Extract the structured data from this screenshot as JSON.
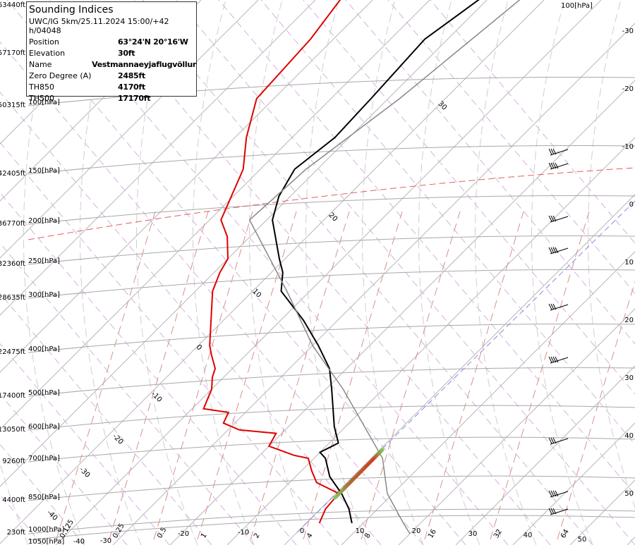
{
  "info_box": {
    "title": "Sounding Indices",
    "model_run": "UWC/IG 5km/25.11.2024 15:00/+42 h/04048",
    "rows": [
      {
        "label": "Position",
        "value": "63°24'N 20°16'W"
      },
      {
        "label": "Elevation",
        "value": "30ft"
      },
      {
        "label": "Name",
        "value": "Vestmannaeyjaflugvöllur"
      },
      {
        "label": "Zero Degree (A)",
        "value": "2485ft"
      },
      {
        "label": "TH850",
        "value": "4170ft"
      },
      {
        "label": "TH500",
        "value": "17170ft"
      }
    ]
  },
  "chart_data": {
    "type": "line",
    "diagram": "skew-T log-P",
    "pressure_levels": [
      {
        "p": 1050,
        "label": "1050[hPa]",
        "alt": ""
      },
      {
        "p": 1000,
        "label": "1000[hPa]",
        "alt": "230ft"
      },
      {
        "p": 850,
        "label": "850[hPa]",
        "alt": "4400ft"
      },
      {
        "p": 700,
        "label": "700[hPa]",
        "alt": "9260ft"
      },
      {
        "p": 600,
        "label": "600[hPa]",
        "alt": "13050ft"
      },
      {
        "p": 500,
        "label": "500[hPa]",
        "alt": "17400ft"
      },
      {
        "p": 400,
        "label": "400[hPa]",
        "alt": "22475ft"
      },
      {
        "p": 300,
        "label": "300[hPa]",
        "alt": "28635ft"
      },
      {
        "p": 250,
        "label": "250[hPa]",
        "alt": "32360ft"
      },
      {
        "p": 200,
        "label": "200[hPa]",
        "alt": "36770ft"
      },
      {
        "p": 150,
        "label": "150[hPa]",
        "alt": "42405ft"
      },
      {
        "p": 100,
        "label": "100[hPa]",
        "alt": "50315ft"
      }
    ],
    "top_altitudes": [
      "63440ft",
      "57170ft"
    ],
    "top_right_label": "100[hPa]",
    "bottom_temperature_ticks": [
      -40,
      -30,
      -20,
      -10,
      0,
      10,
      20,
      30,
      40,
      50
    ],
    "right_temperature_ticks": [
      -30,
      -20,
      -10,
      0,
      10,
      20,
      30,
      40,
      50
    ],
    "inline_isotherm_labels": [
      30,
      20,
      10,
      0,
      -10,
      -20,
      -30,
      -40
    ],
    "mixing_ratio_labels": [
      "0.125",
      "0.25",
      "0.5",
      "1",
      "2",
      "4",
      "8",
      "16",
      "32",
      "64"
    ],
    "series": [
      {
        "role": "temperature",
        "color": "#000000",
        "points": [
          [
            1000,
            8
          ],
          [
            925,
            5
          ],
          [
            850,
            1
          ],
          [
            775,
            -4
          ],
          [
            700,
            -8
          ],
          [
            680,
            -10
          ],
          [
            650,
            -8.4
          ],
          [
            600,
            -12
          ],
          [
            500,
            -19
          ],
          [
            450,
            -23
          ],
          [
            400,
            -29
          ],
          [
            350,
            -36
          ],
          [
            300,
            -45
          ],
          [
            270,
            -48
          ],
          [
            250,
            -51
          ],
          [
            200,
            -59
          ],
          [
            175,
            -62
          ],
          [
            150,
            -64
          ],
          [
            125,
            -62.5
          ],
          [
            100,
            -63
          ],
          [
            70,
            -64
          ],
          [
            53,
            -61
          ]
        ]
      },
      {
        "role": "dewpoint",
        "color": "#e00000",
        "points": [
          [
            1000,
            2.3
          ],
          [
            925,
            0.9
          ],
          [
            850,
            0.5
          ],
          [
            800,
            -5.3
          ],
          [
            750,
            -8.2
          ],
          [
            700,
            -11
          ],
          [
            690,
            -14
          ],
          [
            660,
            -20
          ],
          [
            620,
            -21
          ],
          [
            610,
            -28
          ],
          [
            590,
            -32
          ],
          [
            560,
            -33
          ],
          [
            550,
            -38
          ],
          [
            500,
            -40
          ],
          [
            470,
            -42
          ],
          [
            450,
            -43
          ],
          [
            420,
            -46
          ],
          [
            400,
            -48
          ],
          [
            300,
            -57
          ],
          [
            270,
            -59
          ],
          [
            250,
            -60
          ],
          [
            220,
            -64
          ],
          [
            200,
            -68
          ],
          [
            150,
            -73
          ],
          [
            125,
            -78
          ],
          [
            100,
            -83
          ],
          [
            70,
            -84
          ],
          [
            53,
            -86
          ]
        ]
      },
      {
        "role": "parcel",
        "color": "#888888",
        "points": [
          [
            1050,
            20
          ],
          [
            1000,
            17
          ],
          [
            850,
            9
          ],
          [
            700,
            2
          ],
          [
            500,
            -17
          ],
          [
            400,
            -30
          ],
          [
            300,
            -44
          ],
          [
            200,
            -63
          ],
          [
            150,
            -62
          ],
          [
            100,
            -58
          ],
          [
            53,
            -54
          ]
        ]
      }
    ],
    "zero_degree_line_color": "#e06060",
    "wind_barbs_levels": [
      150,
      140,
      200,
      250,
      300,
      400,
      600,
      850,
      900
    ]
  }
}
